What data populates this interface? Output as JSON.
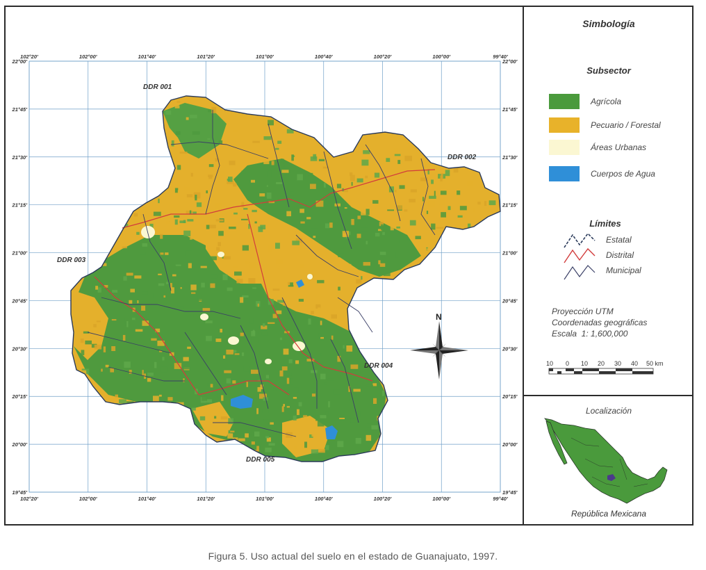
{
  "map": {
    "top_lon_labels": [
      "102°20'",
      "102°00'",
      "101°40'",
      "101°20'",
      "101°00'",
      "100°40'",
      "100°20'",
      "100°00'",
      "99°40'"
    ],
    "bottom_lon_labels": [
      "102°20'",
      "102°00'",
      "101°40'",
      "101°20'",
      "101°00'",
      "100°40'",
      "100°20'",
      "100°00'",
      "99°40'"
    ],
    "left_lat_labels": [
      "22°00'",
      "21°45'",
      "21°30'",
      "21°15'",
      "21°00'",
      "20°45'",
      "20°30'",
      "20°15'",
      "20°00'",
      "19°45'"
    ],
    "right_lat_labels": [
      "22°00'",
      "21°45'",
      "21°30'",
      "21°15'",
      "21°00'",
      "20°45'",
      "20°30'",
      "20°15'",
      "20°00'",
      "19°45'"
    ],
    "ddr_labels": [
      "DDR 001",
      "DDR 002",
      "DDR 003",
      "DDR 004",
      "DDR 005"
    ],
    "north_label": "N"
  },
  "legend": {
    "title": "Simbología",
    "subsector_title": "Subsector",
    "subsector_items": [
      {
        "label": "Agrícola",
        "color": "#4a9a3c"
      },
      {
        "label": "Pecuario / Forestal",
        "color": "#e8b22a"
      },
      {
        "label": "Áreas Urbanas",
        "color": "#fbf7d2"
      },
      {
        "label": "Cuerpos de Agua",
        "color": "#2f8fd8"
      }
    ],
    "limits_title": "Límites",
    "limits_items": [
      {
        "label": "Estatal",
        "color": "#2a3a5a"
      },
      {
        "label": "Distrital",
        "color": "#d23c3c"
      },
      {
        "label": "Municipal",
        "color": "#3a3f66"
      }
    ],
    "projection": "Proyección UTM",
    "coordinates": "Coordenadas geográficas",
    "scale": "Escala  1: 1,600,000",
    "scalebar_labels": [
      "10",
      "0",
      "10",
      "20",
      "30",
      "40",
      "50 km"
    ]
  },
  "location": {
    "title": "Localización",
    "subtitle": "República Mexicana"
  },
  "caption": "Figura 5. Uso actual del suelo en el estado de Guanajuato, 1997."
}
